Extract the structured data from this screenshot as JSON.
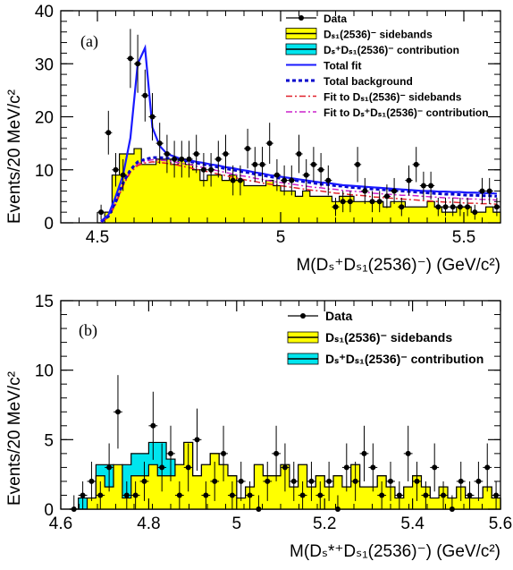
{
  "chart_data": [
    {
      "panel": "(a)",
      "type": "bar",
      "ylabel": "Events/20 MeV/c²",
      "xlabel": "M(Dₛ⁺Dₛ₁(2536)⁻) (GeV/c²)",
      "xlim": [
        4.4,
        5.6
      ],
      "ylim": [
        0,
        40
      ],
      "xticks": [
        "4.5",
        "5",
        "5.5"
      ],
      "yticks": [
        "0",
        "10",
        "20",
        "30",
        "40"
      ],
      "legend": [
        "Data",
        "Dₛ₁(2536)⁻ sidebands",
        "Dₛ⁺Dₛ₁(2536)⁻ contribution",
        "Total fit",
        "Total background",
        "Fit to Dₛ₁(2536)⁻ sidebands",
        "Fit to Dₛ⁺Dₛ₁(2536)⁻ contribution"
      ],
      "x": [
        4.51,
        4.53,
        4.55,
        4.57,
        4.59,
        4.61,
        4.63,
        4.65,
        4.67,
        4.69,
        4.71,
        4.73,
        4.75,
        4.77,
        4.79,
        4.81,
        4.83,
        4.85,
        4.87,
        4.89,
        4.91,
        4.93,
        4.95,
        4.97,
        4.99,
        5.01,
        5.03,
        5.05,
        5.07,
        5.09,
        5.11,
        5.13,
        5.15,
        5.17,
        5.19,
        5.21,
        5.23,
        5.25,
        5.27,
        5.29,
        5.31,
        5.33,
        5.35,
        5.37,
        5.39,
        5.41,
        5.43,
        5.45,
        5.47,
        5.49,
        5.51,
        5.53,
        5.55,
        5.57,
        5.59
      ],
      "series": [
        {
          "name": "Data",
          "values": [
            2,
            17,
            10,
            9,
            31,
            30,
            24,
            20,
            15,
            13,
            12,
            12,
            12,
            13,
            10,
            10,
            12,
            13,
            8,
            8,
            14,
            11,
            11,
            15,
            9,
            8,
            8,
            13,
            9,
            11,
            10,
            8,
            3,
            4,
            4,
            11,
            6,
            4,
            4,
            5,
            6,
            3,
            8,
            11,
            7,
            7,
            3,
            3,
            3,
            3,
            3,
            2,
            6,
            6,
            3
          ]
        },
        {
          "name": "Dₛ₁(2536)⁻ sidebands",
          "values": [
            0,
            2,
            9,
            13,
            13,
            14,
            11,
            11,
            12,
            12,
            11,
            12,
            11,
            10,
            8,
            9,
            9,
            8,
            9,
            8,
            7,
            7,
            7,
            8,
            7,
            6,
            6,
            5,
            6,
            5,
            5,
            5,
            4,
            5,
            5,
            4,
            4,
            4,
            4,
            3,
            4,
            4,
            3,
            3,
            3,
            4,
            3,
            2,
            2,
            3,
            3,
            2,
            2,
            3,
            2
          ]
        },
        {
          "name": "Total fit",
          "values": [
            0.3,
            1.5,
            5,
            9,
            16,
            30,
            33,
            18,
            14.5,
            13,
            12.5,
            12,
            11.8,
            11.5,
            11.3,
            11,
            10.8,
            10.5,
            10.3,
            10,
            9.8,
            9.5,
            9.3,
            9,
            8.8,
            8.6,
            8.4,
            8.2,
            8,
            7.8,
            7.6,
            7.5,
            7.3,
            7.1,
            7,
            6.9,
            6.8,
            6.7,
            6.6,
            6.5,
            6.4,
            6.3,
            6.2,
            6.1,
            6,
            6,
            5.9,
            5.9,
            5.8,
            5.8,
            5.7,
            5.7,
            5.6,
            5.6,
            5.5
          ]
        },
        {
          "name": "Total background",
          "values": [
            0.2,
            1.2,
            4,
            7.5,
            10,
            11.5,
            12,
            12.3,
            12.3,
            12.2,
            12,
            11.8,
            11.6,
            11.3,
            11,
            10.8,
            10.5,
            10.2,
            10,
            9.7,
            9.5,
            9.2,
            9,
            8.7,
            8.5,
            8.3,
            8.1,
            7.9,
            7.7,
            7.5,
            7.3,
            7.2,
            7,
            6.9,
            6.7,
            6.6,
            6.5,
            6.4,
            6.3,
            6.2,
            6.1,
            6,
            5.9,
            5.8,
            5.7,
            5.6,
            5.5,
            5.4,
            5.4,
            5.3,
            5.2,
            5.2,
            5.1,
            5.1,
            5
          ]
        },
        {
          "name": "Fit to Dₛ₁(2536)⁻ sidebands",
          "values": [
            0.1,
            1,
            3.5,
            7,
            9.5,
            10.8,
            11.3,
            11.5,
            11.4,
            11.2,
            11,
            10.7,
            10.4,
            10.1,
            9.8,
            9.5,
            9.2,
            8.9,
            8.6,
            8.3,
            8,
            7.8,
            7.5,
            7.3,
            7.1,
            6.9,
            6.7,
            6.5,
            6.3,
            6.1,
            6,
            5.8,
            5.6,
            5.5,
            5.3,
            5.2,
            5.1,
            4.9,
            4.8,
            4.7,
            4.6,
            4.5,
            4.4,
            4.3,
            4.2,
            4.1,
            4,
            3.9,
            3.9,
            3.8,
            3.7,
            3.7,
            3.6,
            3.6,
            3.5
          ]
        },
        {
          "name": "Fit to Dₛ⁺Dₛ₁(2536)⁻ contribution",
          "values": [
            0.1,
            1.1,
            3.8,
            7.3,
            9.8,
            11.1,
            11.6,
            11.9,
            11.8,
            11.7,
            11.5,
            11.2,
            11,
            10.7,
            10.4,
            10.1,
            9.8,
            9.5,
            9.2,
            8.9,
            8.7,
            8.4,
            8.2,
            7.9,
            7.7,
            7.5,
            7.3,
            7.1,
            6.9,
            6.7,
            6.6,
            6.4,
            6.3,
            6.1,
            6,
            5.9,
            5.8,
            5.6,
            5.5,
            5.4,
            5.3,
            5.2,
            5.2,
            5.1,
            5,
            4.9,
            4.8,
            4.7,
            4.7,
            4.6,
            4.5,
            4.5,
            4.4,
            4.4,
            4.3
          ]
        }
      ]
    },
    {
      "panel": "(b)",
      "type": "bar",
      "ylabel": "Events/20 MeV/c²",
      "xlabel": "M(Dₛ*⁺Dₛ₁(2536)⁻) (GeV/c²)",
      "xlim": [
        4.6,
        5.6
      ],
      "ylim": [
        0,
        15
      ],
      "xticks": [
        "4.6",
        "4.8",
        "5",
        "5.2",
        "5.4",
        "5.6"
      ],
      "yticks": [
        "0",
        "5",
        "10",
        "15"
      ],
      "legend": [
        "Data",
        "Dₛ₁(2536)⁻ sidebands",
        "Dₛ⁺Dₛ₁(2536)⁻ contribution"
      ],
      "x": [
        4.63,
        4.65,
        4.67,
        4.69,
        4.71,
        4.73,
        4.75,
        4.77,
        4.79,
        4.81,
        4.83,
        4.85,
        4.87,
        4.89,
        4.91,
        4.93,
        4.95,
        4.97,
        4.99,
        5.01,
        5.03,
        5.05,
        5.07,
        5.09,
        5.11,
        5.13,
        5.15,
        5.17,
        5.19,
        5.21,
        5.23,
        5.25,
        5.27,
        5.29,
        5.31,
        5.33,
        5.35,
        5.37,
        5.39,
        5.41,
        5.43,
        5.45,
        5.47,
        5.49,
        5.51,
        5.53,
        5.55,
        5.57,
        5.59
      ],
      "series": [
        {
          "name": "Data",
          "values": [
            0,
            1,
            2,
            1,
            3,
            7,
            1,
            1,
            2,
            6,
            3,
            4,
            1,
            3,
            5,
            1,
            2,
            4,
            1,
            2,
            1,
            0,
            2,
            4,
            3,
            2,
            1,
            2,
            1,
            2,
            0,
            3,
            2,
            4,
            3,
            1,
            2,
            1,
            4,
            2,
            1,
            3,
            1,
            0,
            2,
            1,
            2,
            3,
            1
          ]
        },
        {
          "name": "Dₛ₁(2536)⁻ sidebands",
          "values": [
            0,
            0,
            0.8,
            2.4,
            1.6,
            3.2,
            0.8,
            2.4,
            2.4,
            3.2,
            2.4,
            2.4,
            3.2,
            4.8,
            2.4,
            3.2,
            4,
            3.2,
            2.4,
            0.8,
            1.6,
            3.2,
            2.4,
            2.4,
            3.2,
            1.6,
            3.2,
            1.6,
            2.4,
            1.6,
            2.4,
            1.6,
            3.2,
            1.6,
            1.6,
            2.4,
            1.6,
            0.8,
            1.6,
            2.4,
            1.6,
            0.8,
            1.6,
            0.8,
            1.6,
            0.8,
            0.8,
            1.6,
            0.8
          ]
        },
        {
          "name": "Dₛ⁺Dₛ₁(2536)⁻ contribution",
          "values": [
            0,
            0.8,
            0.8,
            3.2,
            3.2,
            1.6,
            3.2,
            4,
            4,
            4.8,
            4.8,
            3.6,
            3.2,
            4.8,
            2.4,
            3.2,
            4,
            3.2,
            2.4,
            0.8,
            1.6,
            3.2,
            2.4,
            2.4,
            3.2,
            1.6,
            3.2,
            1.6,
            2.4,
            1.6,
            2.4,
            1.6,
            3.2,
            1.6,
            1.6,
            2.4,
            1.6,
            0.8,
            1.6,
            2.4,
            1.6,
            0.8,
            1.6,
            0.8,
            1.6,
            0.8,
            0.8,
            1.6,
            0.8
          ]
        }
      ]
    }
  ],
  "colors": {
    "sideband_fill": "#ffff00",
    "contribution_fill": "#00e5ee",
    "total_fit": "#1a1aff",
    "total_background": "#0000cc",
    "fit_sidebands": "#e0202a",
    "fit_contribution": "#cc22cc"
  }
}
